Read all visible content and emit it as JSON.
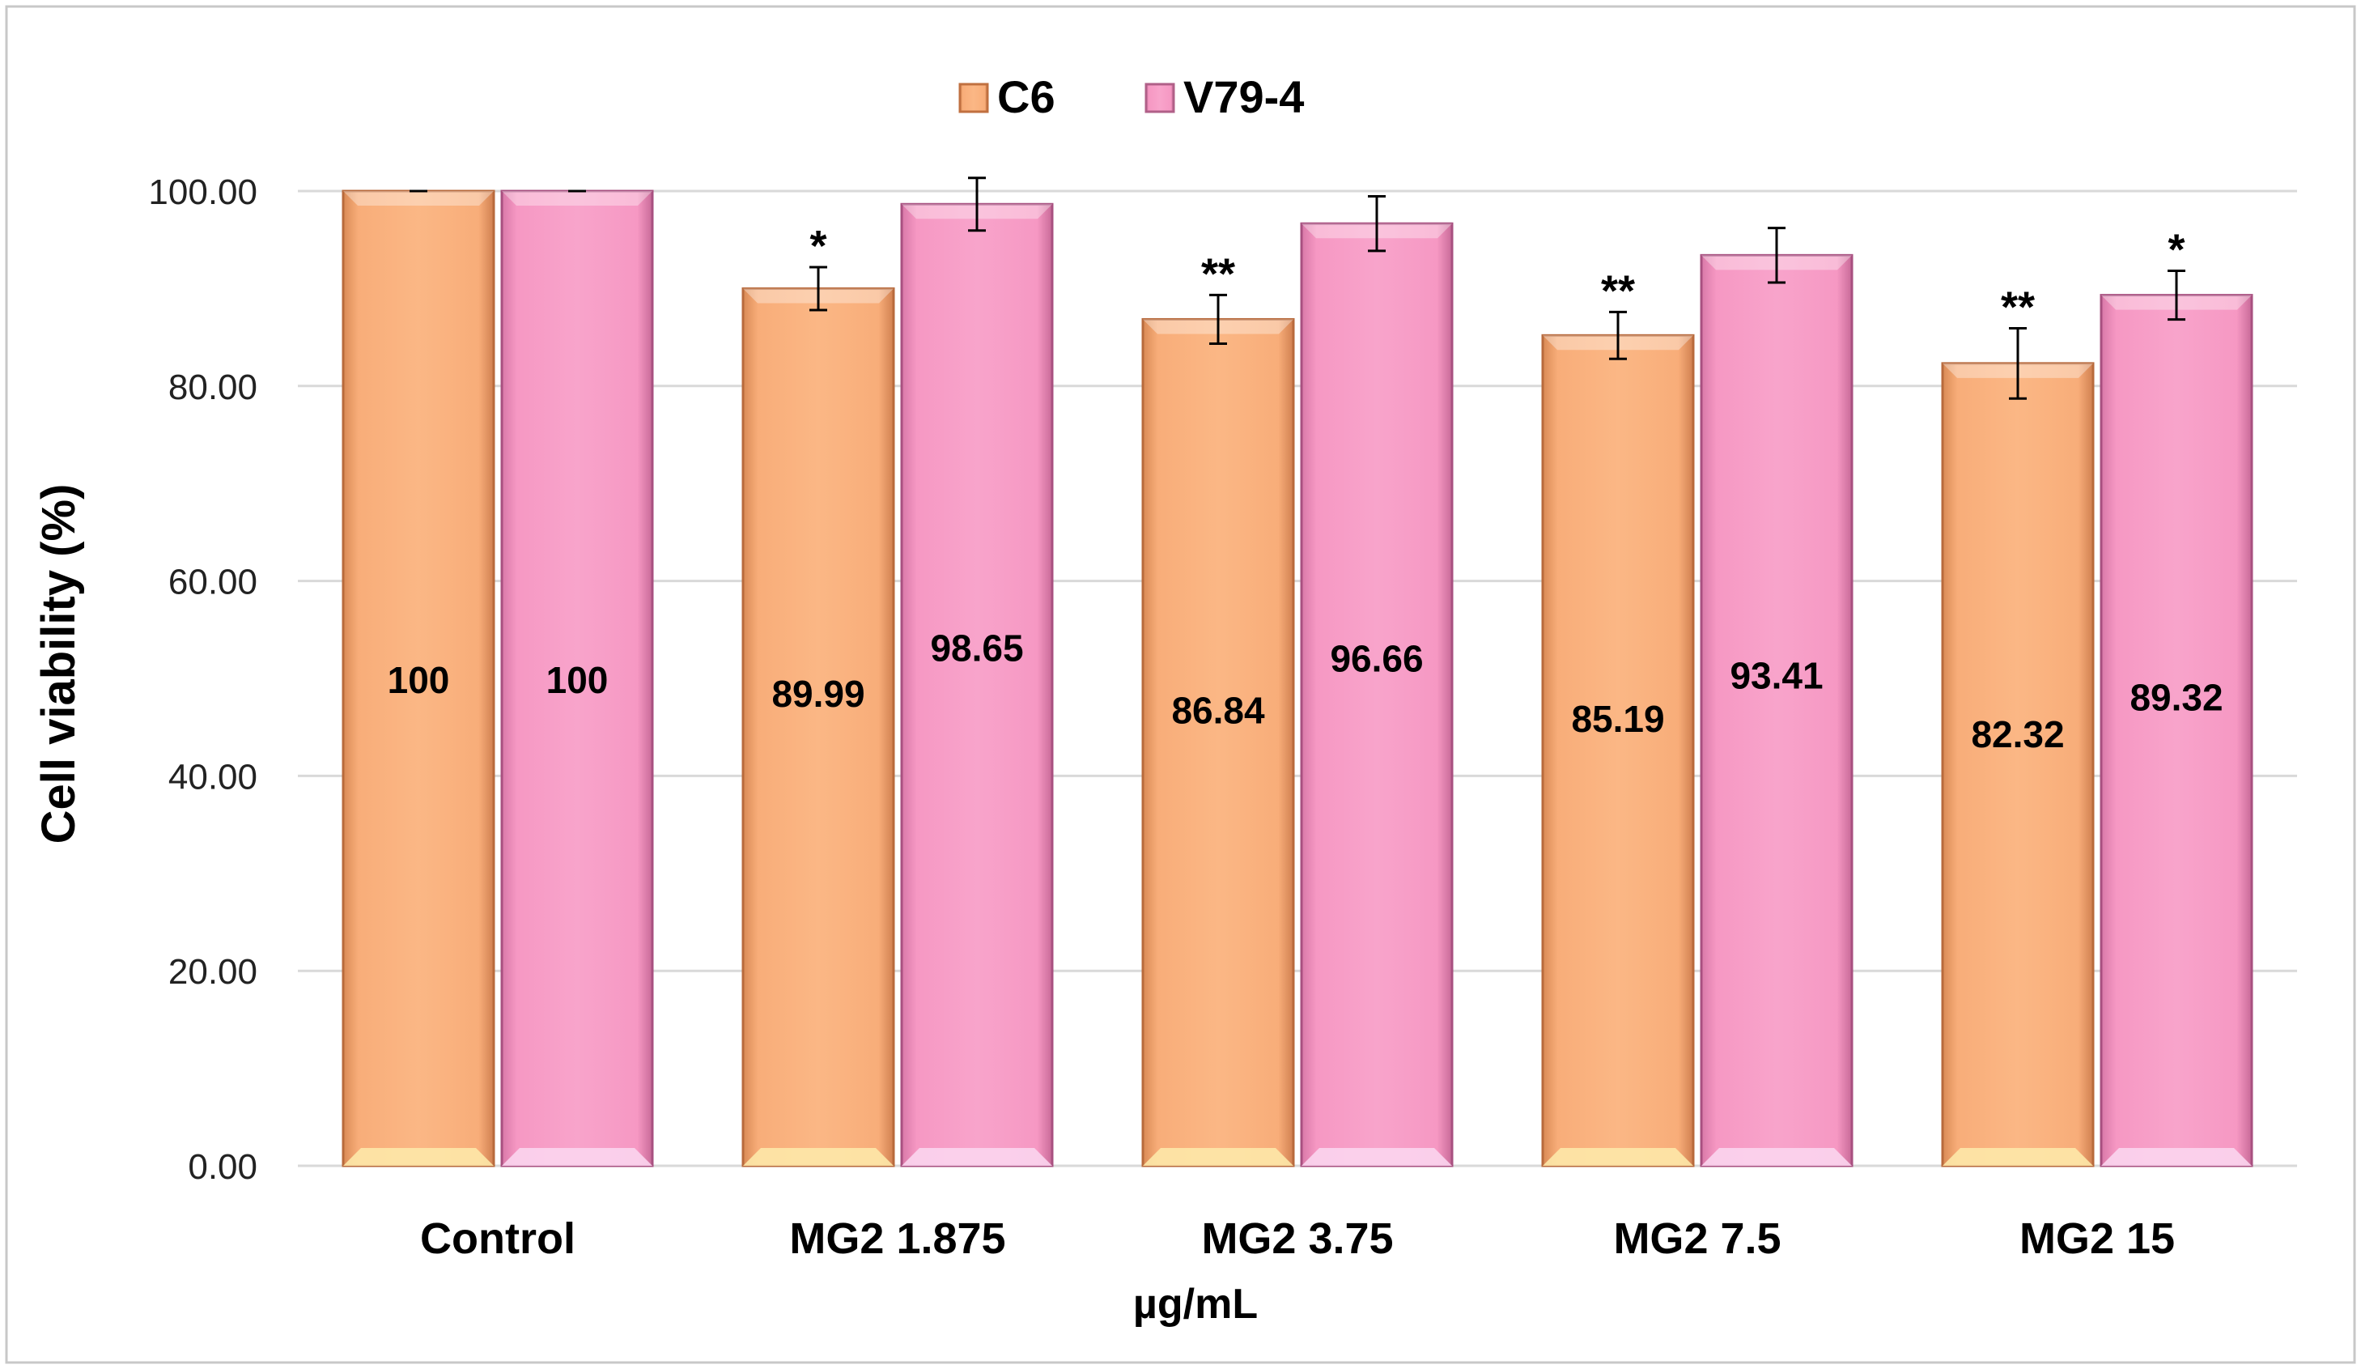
{
  "chart_data": {
    "type": "bar",
    "title": "",
    "xlabel": "µg/mL",
    "ylabel": "Cell viability (%)",
    "ylim": [
      0,
      100
    ],
    "yticks": [
      0,
      20,
      40,
      60,
      80,
      100
    ],
    "ytick_labels": [
      "0.00",
      "20.00",
      "40.00",
      "60.00",
      "80.00",
      "100.00"
    ],
    "grid": true,
    "legend_position": "top-center",
    "categories": [
      "Control",
      "MG2 1.875",
      "MG2 3.75",
      "MG2 7.5",
      "MG2 15"
    ],
    "series": [
      {
        "name": "C6",
        "color": "#f9ae7b",
        "values": [
          100,
          89.99,
          86.84,
          85.19,
          82.32
        ],
        "value_labels": [
          "100",
          "89.99",
          "86.84",
          "85.19",
          "82.32"
        ],
        "errors": [
          0,
          2.2,
          2.5,
          2.4,
          3.6
        ],
        "significance": [
          "",
          "*",
          "**",
          "**",
          "**"
        ]
      },
      {
        "name": "V79-4",
        "color": "#f59ac4",
        "values": [
          100,
          98.65,
          96.66,
          93.41,
          89.32
        ],
        "value_labels": [
          "100",
          "98.65",
          "96.66",
          "93.41",
          "89.32"
        ],
        "errors": [
          0,
          2.7,
          2.8,
          2.8,
          2.5
        ],
        "significance": [
          "",
          "",
          "",
          "",
          "*"
        ]
      }
    ]
  }
}
